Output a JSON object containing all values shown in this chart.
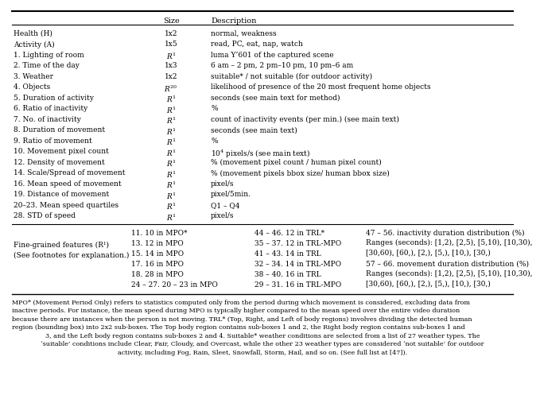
{
  "main_rows": [
    [
      "Health (H)",
      "1x2",
      "normal, weakness"
    ],
    [
      "Activity (A)",
      "1x5",
      "read, PC, eat, nap, watch"
    ],
    [
      "1. Lighting of room",
      "R1",
      "luma Y’601 of the captured scene"
    ],
    [
      "2. Time of the day",
      "1x3",
      "6 am – 2 pm, 2 pm–10 pm, 10 pm–6 am"
    ],
    [
      "3. Weather",
      "1x2",
      "suitable* / not suitable (for outdoor activity)"
    ],
    [
      "4. Objects",
      "R20",
      "likelihood of presence of the 20 most frequent home objects"
    ],
    [
      "5. Duration of activity",
      "R1",
      "seconds (see main text for method)"
    ],
    [
      "6. Ratio of inactivity",
      "R1",
      "%"
    ],
    [
      "7. No. of inactivity",
      "R1",
      "count of inactivity events (per min.) (see main text)"
    ],
    [
      "8. Duration of movement",
      "R1",
      "seconds (see main text)"
    ],
    [
      "9. Ratio of movement",
      "R1",
      "%"
    ],
    [
      "10. Movement pixel count",
      "R1",
      "10^4 pixels/s (see main text)"
    ],
    [
      "12. Density of movement",
      "R1",
      "% (movement pixel count / human pixel count)"
    ],
    [
      "14. Scale/Spread of movement",
      "R1",
      "% (movement pixels bbox size/ human bbox size)"
    ],
    [
      "16. Mean speed of movement",
      "R1",
      "pixel/s"
    ],
    [
      "19. Distance of movement",
      "R1",
      "pixel/5min."
    ],
    [
      "20–23. Mean speed quartiles",
      "R1",
      "Q1 – Q4"
    ],
    [
      "28. STD of speed",
      "R1",
      "pixel/s"
    ]
  ],
  "fine_label1": "Fine-grained features (R¹)",
  "fine_label2": "(See footnotes for explanation.)",
  "fine_col2": [
    "11. 10 in MPO*",
    "13. 12 in MPO",
    "15. 14 in MPO",
    "17. 16 in MPO",
    "18. 28 in MPO",
    "24 – 27. 20 – 23 in MPO"
  ],
  "fine_col3": [
    "44 – 46. 12 in TRL*",
    "35 – 37. 12 in TRL-MPO",
    "41 – 43. 14 in TRL",
    "32 – 34. 14 in TRL-MPO",
    "38 – 40. 16 in TRL",
    "29 – 31. 16 in TRL-MPO"
  ],
  "fine_col4_top": "47 – 56. inactivity duration distribution (%)\nRanges (seconds): [1,2), [2,5), [5,10), [10,30),\n[30,60), [60,), [2,), [5,), [10,), [30,)",
  "fine_col4_bot": "57 – 66. movement duration distribution (%)\nRanges (seconds): [1,2), [2,5), [5,10), [10,30),\n[30,60), [60,), [2,), [5,), [10,), [30,)",
  "footnote_lines": [
    "MPO* (Movement Period Only) refers to statistics computed only from the period during which movement is considered, excluding data from",
    "inactive periods. For instance, the mean speed during MPO is typically higher compared to the mean speed over the entire video duration",
    "because there are instances when the person is not moving. TRL* (Top, Right, and Left of body regions) involves dividing the detected human",
    "region (bounding box) into 2x2 sub-boxes. The Top body region contains sub-boxes 1 and 2, the Right body region contains sub-boxes 1 and",
    "3, and the Left body region contains sub-boxes 2 and 4. Suitable* weather conditions are selected from a list of 27 weather types. The",
    "‘suitable’ conditions include Clear, Fair, Cloudy, and Overcast, while the other 23 weather types are considered ‘not suitable’ for outdoor",
    "activity, including Fog, Rain, Sleet, Snowfall, Storm, Hail, and so on. (See full list at [47])."
  ],
  "bg_color": "#ffffff",
  "text_color": "#000000"
}
